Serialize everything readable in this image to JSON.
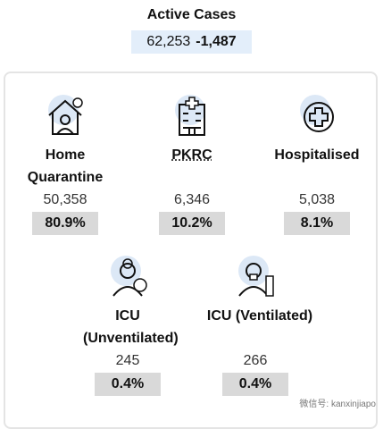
{
  "header": {
    "title": "Active Cases",
    "total": "62,253",
    "change": "-1,487"
  },
  "items": [
    {
      "label": "Home Quarantine",
      "count": "50,358",
      "percent": "80.9%"
    },
    {
      "label": "PKRC",
      "count": "6,346",
      "percent": "10.2%"
    },
    {
      "label": "Hospitalised",
      "count": "5,038",
      "percent": "8.1%"
    },
    {
      "label": "ICU (Unventilated)",
      "count": "245",
      "percent": "0.4%"
    },
    {
      "label": "ICU (Ventilated)",
      "count": "266",
      "percent": "0.4%"
    }
  ],
  "watermark": "微信号: kanxinjiapo"
}
